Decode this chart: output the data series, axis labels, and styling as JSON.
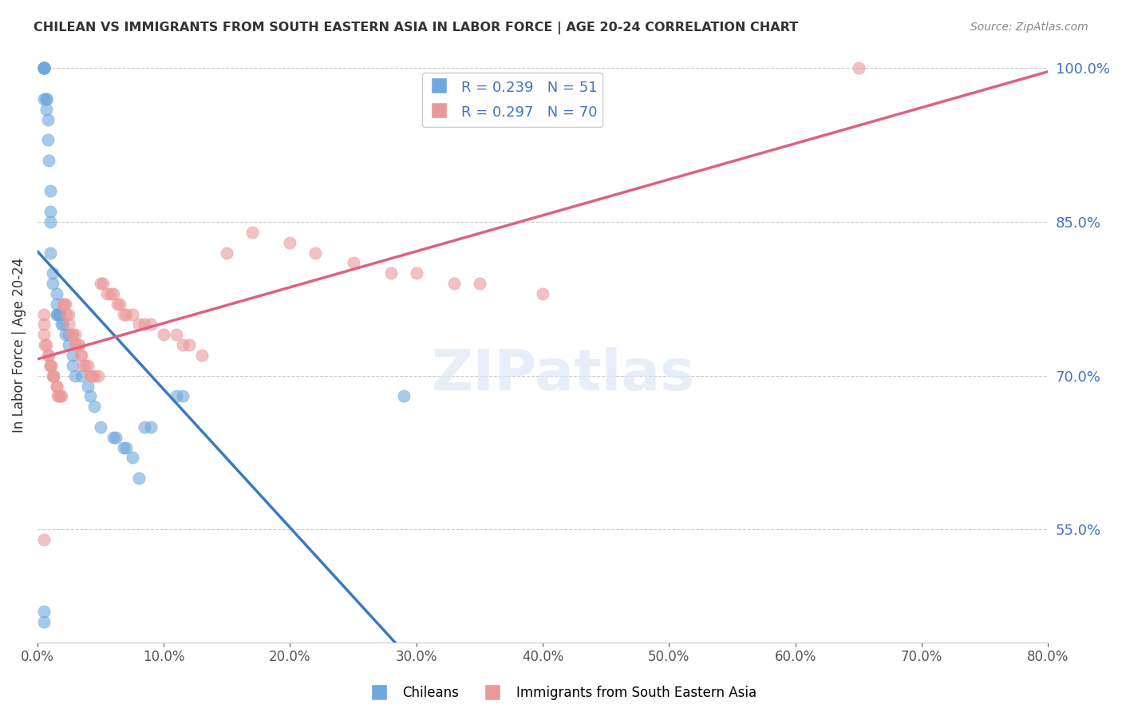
{
  "title": "CHILEAN VS IMMIGRANTS FROM SOUTH EASTERN ASIA IN LABOR FORCE | AGE 20-24 CORRELATION CHART",
  "source": "Source: ZipAtlas.com",
  "ylabel": "In Labor Force | Age 20-24",
  "xlabel": "",
  "x_min": 0.0,
  "x_max": 0.8,
  "y_min": 0.44,
  "y_max": 1.02,
  "y_ticks": [
    0.55,
    0.7,
    0.85,
    1.0
  ],
  "x_ticks": [
    0.0,
    0.1,
    0.2,
    0.3,
    0.4,
    0.5,
    0.6,
    0.7,
    0.8
  ],
  "blue_color": "#6fa8dc",
  "pink_color": "#ea9999",
  "blue_R": 0.239,
  "blue_N": 51,
  "pink_R": 0.297,
  "pink_N": 70,
  "blue_label": "Chileans",
  "pink_label": "Immigrants from South Eastern Asia",
  "watermark": "ZIPatlas",
  "blue_x": [
    0.005,
    0.005,
    0.005,
    0.005,
    0.005,
    0.005,
    0.005,
    0.007,
    0.007,
    0.007,
    0.008,
    0.008,
    0.009,
    0.01,
    0.01,
    0.01,
    0.01,
    0.012,
    0.012,
    0.015,
    0.015,
    0.015,
    0.016,
    0.017,
    0.018,
    0.019,
    0.02,
    0.022,
    0.025,
    0.025,
    0.028,
    0.028,
    0.03,
    0.035,
    0.04,
    0.042,
    0.045,
    0.05,
    0.06,
    0.062,
    0.068,
    0.07,
    0.075,
    0.08,
    0.085,
    0.09,
    0.11,
    0.115,
    0.29,
    0.005,
    0.005
  ],
  "blue_y": [
    1.0,
    1.0,
    1.0,
    1.0,
    1.0,
    1.0,
    0.97,
    0.97,
    0.97,
    0.96,
    0.95,
    0.93,
    0.91,
    0.88,
    0.86,
    0.85,
    0.82,
    0.8,
    0.79,
    0.78,
    0.77,
    0.76,
    0.76,
    0.76,
    0.76,
    0.75,
    0.75,
    0.74,
    0.74,
    0.73,
    0.72,
    0.71,
    0.7,
    0.7,
    0.69,
    0.68,
    0.67,
    0.65,
    0.64,
    0.64,
    0.63,
    0.63,
    0.62,
    0.6,
    0.65,
    0.65,
    0.68,
    0.68,
    0.68,
    0.46,
    0.47
  ],
  "pink_x": [
    0.005,
    0.005,
    0.005,
    0.006,
    0.007,
    0.008,
    0.009,
    0.01,
    0.01,
    0.011,
    0.012,
    0.013,
    0.013,
    0.015,
    0.015,
    0.016,
    0.017,
    0.018,
    0.019,
    0.02,
    0.021,
    0.022,
    0.023,
    0.025,
    0.025,
    0.027,
    0.028,
    0.03,
    0.03,
    0.032,
    0.033,
    0.034,
    0.035,
    0.036,
    0.038,
    0.04,
    0.042,
    0.043,
    0.045,
    0.048,
    0.05,
    0.052,
    0.055,
    0.058,
    0.06,
    0.063,
    0.065,
    0.068,
    0.07,
    0.075,
    0.08,
    0.085,
    0.09,
    0.1,
    0.11,
    0.115,
    0.12,
    0.13,
    0.15,
    0.17,
    0.2,
    0.22,
    0.25,
    0.28,
    0.3,
    0.33,
    0.35,
    0.4,
    0.65,
    0.005
  ],
  "pink_y": [
    0.76,
    0.75,
    0.74,
    0.73,
    0.73,
    0.72,
    0.72,
    0.71,
    0.71,
    0.71,
    0.7,
    0.7,
    0.7,
    0.69,
    0.69,
    0.68,
    0.68,
    0.68,
    0.68,
    0.77,
    0.77,
    0.77,
    0.76,
    0.76,
    0.75,
    0.74,
    0.74,
    0.74,
    0.73,
    0.73,
    0.73,
    0.72,
    0.72,
    0.71,
    0.71,
    0.71,
    0.7,
    0.7,
    0.7,
    0.7,
    0.79,
    0.79,
    0.78,
    0.78,
    0.78,
    0.77,
    0.77,
    0.76,
    0.76,
    0.76,
    0.75,
    0.75,
    0.75,
    0.74,
    0.74,
    0.73,
    0.73,
    0.72,
    0.82,
    0.84,
    0.83,
    0.82,
    0.81,
    0.8,
    0.8,
    0.79,
    0.79,
    0.78,
    1.0,
    0.54
  ]
}
